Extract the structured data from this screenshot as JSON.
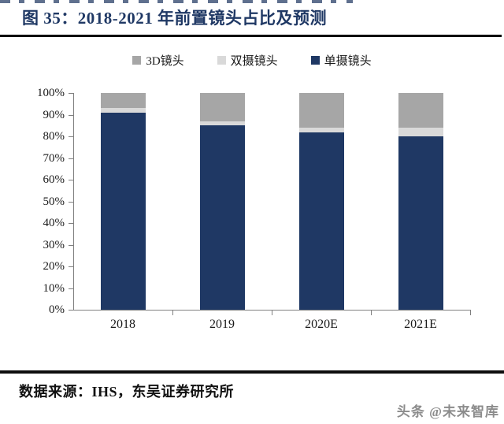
{
  "title": "图 35：2018-2021 年前置镜头占比及预测",
  "legend": [
    {
      "label": "3D镜头",
      "color": "#a6a6a6"
    },
    {
      "label": "双摄镜头",
      "color": "#d9d9d9"
    },
    {
      "label": "单摄镜头",
      "color": "#1f3864"
    }
  ],
  "chart_data": {
    "type": "bar",
    "stacked": true,
    "title": "2018-2021 年前置镜头占比及预测",
    "categories": [
      "2018",
      "2019",
      "2020E",
      "2021E"
    ],
    "series": [
      {
        "name": "单摄镜头",
        "color": "#1f3864",
        "values": [
          91,
          85,
          82,
          80
        ]
      },
      {
        "name": "双摄镜头",
        "color": "#d9d9d9",
        "values": [
          2,
          2,
          2,
          4
        ]
      },
      {
        "name": "3D镜头",
        "color": "#a6a6a6",
        "values": [
          7,
          13,
          16,
          16
        ]
      }
    ],
    "xlabel": "",
    "ylabel": "",
    "ylim": [
      0,
      100
    ],
    "yticks": [
      "100%",
      "90%",
      "80%",
      "70%",
      "60%",
      "50%",
      "40%",
      "30%",
      "20%",
      "10%",
      "0%"
    ],
    "grid": false,
    "legend_position": "top"
  },
  "source": "数据来源：IHS，东吴证券研究所",
  "watermark": "头条 @未来智库"
}
